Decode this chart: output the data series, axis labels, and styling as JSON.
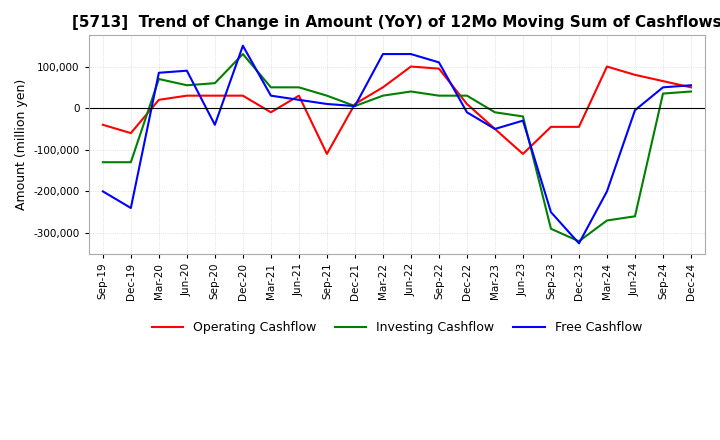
{
  "title": "[5713]  Trend of Change in Amount (YoY) of 12Mo Moving Sum of Cashflows",
  "ylabel": "Amount (million yen)",
  "x_labels": [
    "Sep-19",
    "Dec-19",
    "Mar-20",
    "Jun-20",
    "Sep-20",
    "Dec-20",
    "Mar-21",
    "Jun-21",
    "Sep-21",
    "Dec-21",
    "Mar-22",
    "Jun-22",
    "Sep-22",
    "Dec-22",
    "Mar-23",
    "Jun-23",
    "Sep-23",
    "Dec-23",
    "Mar-24",
    "Jun-24",
    "Sep-24",
    "Dec-24"
  ],
  "operating": [
    -40000,
    -60000,
    20000,
    30000,
    30000,
    30000,
    -10000,
    30000,
    -110000,
    10000,
    50000,
    100000,
    95000,
    10000,
    -50000,
    -110000,
    -45000,
    -45000,
    100000,
    80000,
    65000,
    50000
  ],
  "investing": [
    -130000,
    -130000,
    70000,
    55000,
    60000,
    130000,
    50000,
    50000,
    30000,
    5000,
    30000,
    40000,
    30000,
    30000,
    -10000,
    -20000,
    -290000,
    -320000,
    -270000,
    -260000,
    35000,
    40000
  ],
  "free": [
    -200000,
    -240000,
    85000,
    90000,
    -40000,
    150000,
    30000,
    20000,
    10000,
    5000,
    130000,
    130000,
    110000,
    -10000,
    -50000,
    -30000,
    -250000,
    -325000,
    -200000,
    -5000,
    50000,
    55000
  ],
  "line_colors": {
    "operating": "#ff0000",
    "investing": "#008000",
    "free": "#0000ff"
  },
  "ylim": [
    -350000,
    175000
  ],
  "yticks": [
    -300000,
    -200000,
    -100000,
    0,
    100000
  ],
  "grid_color": "#cccccc",
  "background_color": "#ffffff",
  "title_fontsize": 11,
  "legend_labels": [
    "Operating Cashflow",
    "Investing Cashflow",
    "Free Cashflow"
  ]
}
